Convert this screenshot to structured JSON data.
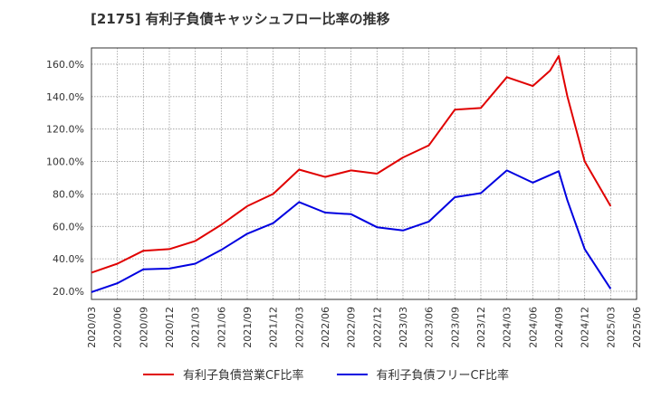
{
  "title": "[2175]  有利子負債キャッシュフロー比率の推移",
  "chart_data": {
    "type": "line",
    "title": "[2175]  有利子負債キャッシュフロー比率の推移",
    "xlabel": "",
    "ylabel": "",
    "ylim": [
      15,
      170
    ],
    "y_ticks": [
      20,
      40,
      60,
      80,
      100,
      120,
      140,
      160
    ],
    "y_tick_labels": [
      "20.0%",
      "40.0%",
      "60.0%",
      "80.0%",
      "100.0%",
      "120.0%",
      "140.0%",
      "160.0%"
    ],
    "grid": true,
    "legend_position": "bottom-center",
    "categories": [
      "2020/03",
      "2020/06",
      "2020/09",
      "2020/12",
      "2021/03",
      "2021/06",
      "2021/09",
      "2021/12",
      "2022/03",
      "2022/06",
      "2022/09",
      "2022/12",
      "2023/03",
      "2023/06",
      "2023/09",
      "2023/12",
      "2024/03",
      "2024/06",
      "2024/09",
      "2024/12",
      "2025/03",
      "2025/06"
    ],
    "series": [
      {
        "name": "有利子負債営業CF比率",
        "color": "#e00000",
        "points": [
          [
            "2020/03",
            31.5
          ],
          [
            "2020/06",
            37
          ],
          [
            "2020/09",
            45
          ],
          [
            "2020/12",
            46
          ],
          [
            "2021/03",
            51
          ],
          [
            "2021/06",
            61
          ],
          [
            "2021/09",
            72.5
          ],
          [
            "2021/12",
            80
          ],
          [
            "2022/03",
            95
          ],
          [
            "2022/06",
            90.5
          ],
          [
            "2022/09",
            94.5
          ],
          [
            "2022/12",
            92.5
          ],
          [
            "2023/03",
            102.5
          ],
          [
            "2023/06",
            110
          ],
          [
            "2023/09",
            132
          ],
          [
            "2023/12",
            133
          ],
          [
            "2024/03",
            152
          ],
          [
            "2024/06",
            146.5
          ],
          [
            "2024/08",
            156
          ],
          [
            "2024/09",
            165
          ],
          [
            "2024/10",
            140
          ],
          [
            "2024/12",
            100
          ],
          [
            "2025/03",
            72.5
          ]
        ]
      },
      {
        "name": "有利子負債フリーCF比率",
        "color": "#0000e0",
        "points": [
          [
            "2020/03",
            19.5
          ],
          [
            "2020/06",
            25
          ],
          [
            "2020/09",
            33.5
          ],
          [
            "2020/12",
            34
          ],
          [
            "2021/03",
            37
          ],
          [
            "2021/06",
            45.5
          ],
          [
            "2021/09",
            55.5
          ],
          [
            "2021/12",
            62
          ],
          [
            "2022/03",
            75
          ],
          [
            "2022/06",
            68.5
          ],
          [
            "2022/09",
            67.5
          ],
          [
            "2022/12",
            59.5
          ],
          [
            "2023/03",
            57.5
          ],
          [
            "2023/06",
            63
          ],
          [
            "2023/09",
            78
          ],
          [
            "2023/12",
            80.5
          ],
          [
            "2024/03",
            94.5
          ],
          [
            "2024/06",
            87
          ],
          [
            "2024/09",
            94
          ],
          [
            "2024/10",
            76
          ],
          [
            "2024/12",
            46
          ],
          [
            "2025/03",
            21.5
          ]
        ]
      }
    ]
  }
}
